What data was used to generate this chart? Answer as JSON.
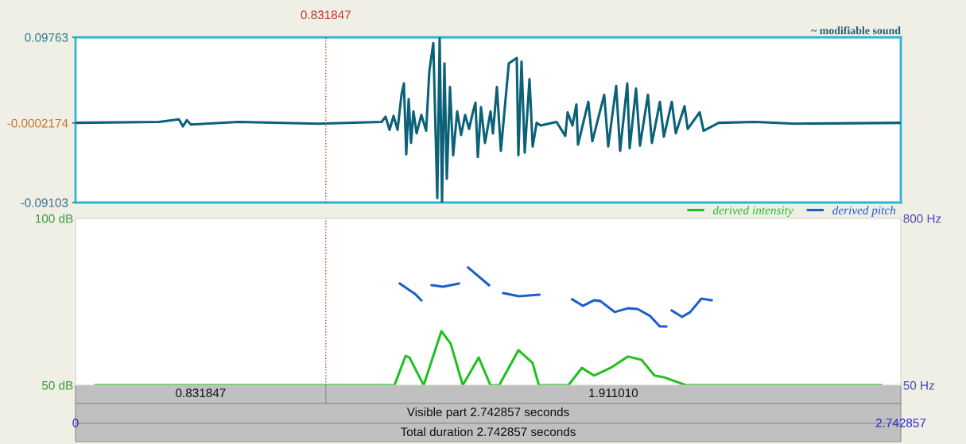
{
  "chart_data": [
    {
      "type": "line",
      "annotations": [
        "~ modifiable sound"
      ],
      "series": [
        {
          "color": "#0b6177",
          "x": [
            0,
            0.2775,
            0.3435,
            0.3567,
            0.3699,
            0.3831,
            0.5417,
            0.8059,
            1.0173,
            1.0305,
            1.0437,
            1.057,
            1.0702,
            1.0834,
            1.0913,
            1.0992,
            1.1072,
            1.1151,
            1.123,
            1.1336,
            1.1494,
            1.1653,
            1.1759,
            1.1891,
            1.2023,
            1.2102,
            1.2181,
            1.2261,
            1.234,
            1.2446,
            1.2551,
            1.2684,
            1.2816,
            1.2948,
            1.308,
            1.3212,
            1.3291,
            1.3371,
            1.3476,
            1.3608,
            1.3793,
            1.3873,
            1.4005,
            1.4137,
            1.4401,
            1.4665,
            1.4718,
            1.4824,
            1.493,
            1.5088,
            1.5194,
            1.5326,
            1.5458,
            1.5987,
            1.6277,
            1.6356,
            1.6515,
            1.6647,
            1.67,
            1.7043,
            1.7176,
            1.7572,
            1.7704,
            1.7968,
            1.81,
            1.8338,
            1.8418,
            1.8629,
            1.8761,
            1.9025,
            1.9157,
            1.9422,
            1.9554,
            1.9818,
            1.995,
            2.0241,
            2.0346,
            2.0743,
            2.0875,
            2.1377,
            2.2593,
            2.3914,
            2.742857
          ],
          "values": [
            0,
            0.001,
            0.004,
            -0.004,
            0.003,
            -0.002,
            0.001,
            -0.001,
            0.001,
            0.007,
            -0.008,
            0.008,
            -0.008,
            0.032,
            0.045,
            -0.036,
            0.027,
            -0.023,
            0.013,
            -0.012,
            0.009,
            -0.009,
            0.059,
            0.091,
            -0.086,
            0.097,
            -0.09,
            0.068,
            -0.064,
            0.041,
            -0.037,
            0.013,
            -0.014,
            0.009,
            -0.007,
            0.013,
            0.023,
            -0.039,
            0.018,
            -0.023,
            0.013,
            -0.012,
            0.041,
            -0.032,
            0.068,
            0.074,
            -0.037,
            0.07,
            -0.034,
            0.05,
            -0.027,
            0,
            -0.003,
            0.001,
            -0.015,
            0.012,
            -0.003,
            0.021,
            -0.025,
            0.024,
            -0.021,
            0.032,
            -0.027,
            0.042,
            -0.032,
            0.045,
            -0.029,
            0.039,
            -0.026,
            0.032,
            -0.023,
            0.024,
            -0.016,
            0.024,
            -0.012,
            0.019,
            -0.007,
            0.012,
            -0.009,
            0,
            0.001,
            -0.001,
            0
          ]
        }
      ],
      "xlim": [
        0,
        2.742857
      ],
      "ylim": [
        -0.09103,
        0.09763
      ],
      "yticks": [
        -0.09103,
        -0.0002174,
        0.09763
      ],
      "tick_labels": "y",
      "grid": false,
      "ref_lines": [
        {
          "axis": "x",
          "value": 0.831847,
          "label": "0.831847",
          "color": "#c0392b",
          "line_style": "dotted"
        }
      ]
    },
    {
      "type": "line",
      "legend": "top right",
      "grid": false,
      "annotations": [
        "0.831847",
        "1.911010",
        "Visible part 2.742857 seconds",
        "Total duration 2.742857 seconds"
      ],
      "series": [
        {
          "name": "derived intensity",
          "color": "#22c022",
          "x": [
            0.066,
            1.06,
            1.097,
            1.11,
            1.157,
            1.216,
            1.247,
            1.287,
            1.34,
            1.379,
            1.408,
            1.472,
            1.519,
            1.54,
            1.638,
            1.683,
            1.723,
            1.778,
            1.836,
            1.881,
            1.924,
            1.955,
            2.029,
            2.677
          ],
          "values": [
            50,
            50,
            58.8,
            58.3,
            50,
            66.2,
            62.4,
            50,
            58.3,
            50,
            50,
            60.5,
            56.7,
            50,
            50,
            55.2,
            52.9,
            55.2,
            58.6,
            57.6,
            52.9,
            52.4,
            50,
            50
          ]
        },
        {
          "name": "derived pitch",
          "color": "#1a5fcc",
          "axis": "y2",
          "x": [
            1.078,
            1.128,
            1.149,
            1.166,
            1.184,
            1.221,
            1.274,
            1.29,
            1.305,
            1.374,
            1.398,
            1.422,
            1.474,
            1.541,
            1.6,
            1.651,
            1.686,
            1.723,
            1.744,
            1.792,
            1.836,
            1.868,
            1.91,
            1.942,
            1.963,
            1.972,
            1.982,
            2.016,
            2.043,
            2.08,
            2.114
          ],
          "values": [
            507,
            461,
            432,
            null,
            500,
            493,
            507,
            null,
            579,
            500,
            null,
            464,
            450,
            457,
            null,
            436,
            407,
            432,
            429,
            379,
            396,
            393,
            361,
            314,
            314,
            null,
            386,
            357,
            379,
            439,
            432
          ]
        }
      ],
      "xlim": [
        0,
        2.742857
      ],
      "xticks": [
        {
          "value": 0,
          "label": "0"
        },
        {
          "value": 2.742857,
          "label": "2.742857"
        }
      ],
      "ylim": [
        50,
        100
      ],
      "yticks": [
        {
          "value": 50,
          "label": "50 dB"
        },
        {
          "value": 100,
          "label": "100 dB"
        }
      ],
      "y2lim": [
        50,
        800
      ],
      "y2ticks": [
        {
          "value": 50,
          "label": "50 Hz"
        },
        {
          "value": 800,
          "label": "800 Hz"
        }
      ],
      "ref_lines": [
        {
          "axis": "x",
          "value": 0.831847,
          "color": "#c0392b",
          "line_style": "dotted"
        }
      ]
    }
  ]
}
